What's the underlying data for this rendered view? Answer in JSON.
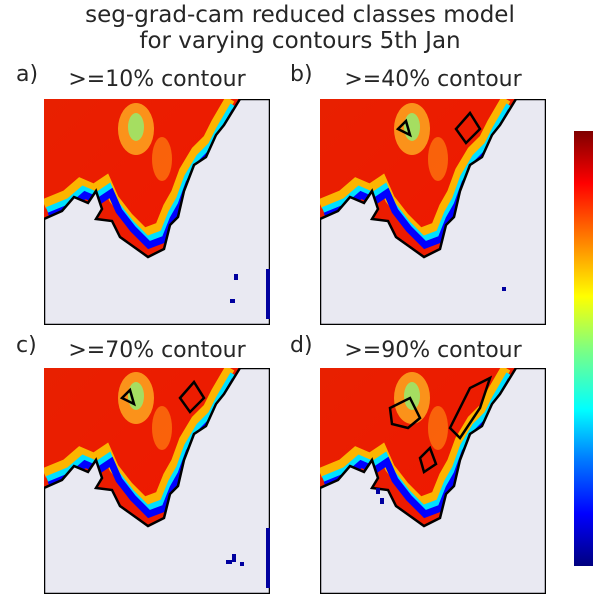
{
  "chart_data": {
    "type": "heatmap",
    "title": "seg-grad-cam reduced classes model\nfor varying contours 5th Jan",
    "title_lines": [
      "seg-grad-cam reduced classes model",
      "for varying contours 5th Jan"
    ],
    "colormap": "jet",
    "colorbar": true,
    "panels": [
      {
        "letter": "a)",
        "label": ">=10% contour",
        "contour_threshold": 10
      },
      {
        "letter": "b)",
        "label": ">=40% contour",
        "contour_threshold": 40
      },
      {
        "letter": "c)",
        "label": ">=70% contour",
        "contour_threshold": 70
      },
      {
        "letter": "d)",
        "label": ">=90% contour",
        "contour_threshold": 90
      }
    ]
  },
  "colors": {
    "land": "#e9e9f2",
    "sea_high": "#e82000",
    "sea_low": "#0000ff",
    "contour": "#000000"
  }
}
